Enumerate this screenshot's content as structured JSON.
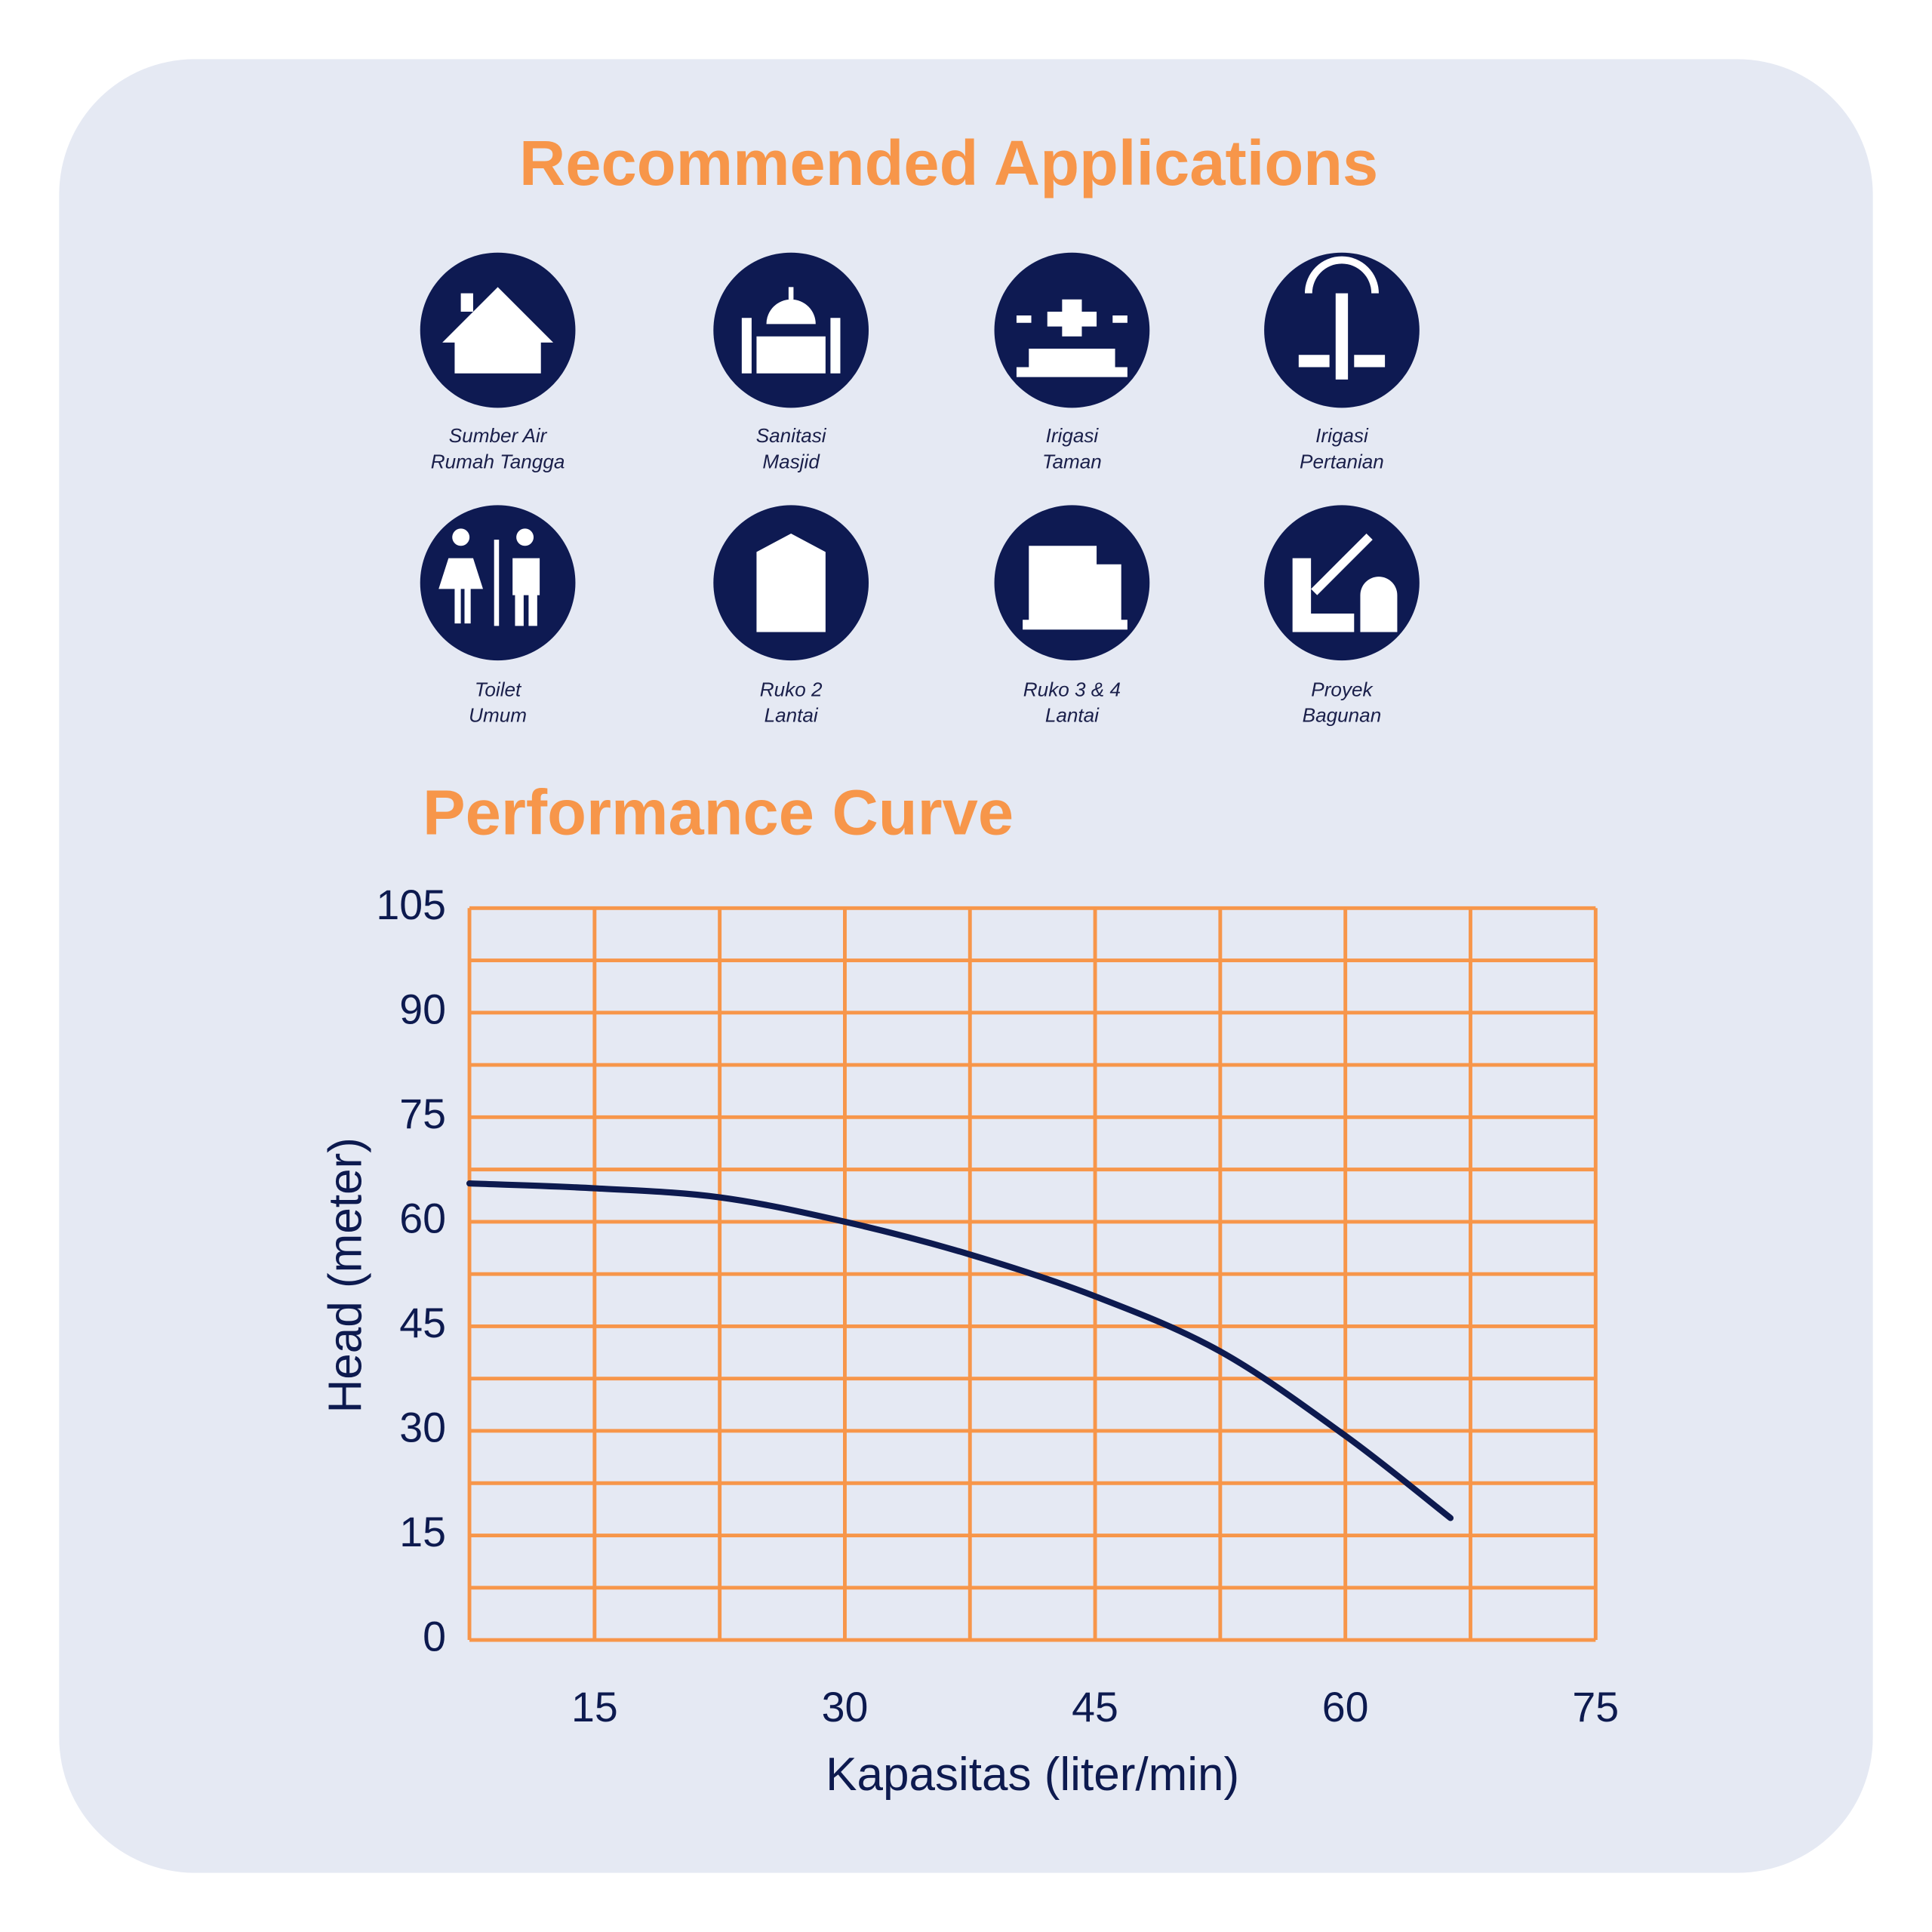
{
  "header": {
    "title": "Recommended Applications"
  },
  "applications": [
    {
      "label": [
        "Sumber Air",
        "Rumah Tangga"
      ]
    },
    {
      "label": [
        "Sanitasi",
        "Masjid"
      ]
    },
    {
      "label": [
        "Irigasi",
        "Taman"
      ]
    },
    {
      "label": [
        "Irigasi",
        "Pertanian"
      ]
    },
    {
      "label": [
        "Toilet",
        "Umum"
      ]
    },
    {
      "label": [
        "Ruko 2",
        "Lantai"
      ]
    },
    {
      "label": [
        "Ruko 3 & 4",
        "Lantai"
      ]
    },
    {
      "label": [
        "Proyek",
        "Bagunan"
      ]
    }
  ],
  "section": {
    "title": "Performance Curve"
  },
  "chart_data": {
    "type": "line",
    "x_label": "Kapasitas (liter/min)",
    "y_label": "Head (meter)",
    "xlim": [
      7.5,
      75
    ],
    "ylim": [
      0,
      105
    ],
    "xticks": [
      15,
      30,
      45,
      60,
      75
    ],
    "yticks": [
      0,
      15,
      30,
      45,
      60,
      75,
      90,
      105
    ],
    "x_grid": [
      7.5,
      15,
      22.5,
      30,
      37.5,
      45,
      52.5,
      60,
      67.5,
      75
    ],
    "y_grid": [
      0,
      7.5,
      15,
      22.5,
      30,
      37.5,
      45,
      52.5,
      60,
      67.5,
      75,
      82.5,
      90,
      97.5,
      105
    ],
    "grid_color": "#f7964a",
    "series": [
      {
        "color": "#0d1a4f",
        "x": [
          7.5,
          15,
          22.5,
          30,
          37.5,
          45,
          52.5,
          60,
          66.3
        ],
        "values": [
          65.5,
          64.8,
          63.5,
          60,
          55.3,
          49.3,
          41.4,
          29.3,
          17.5
        ]
      }
    ]
  }
}
